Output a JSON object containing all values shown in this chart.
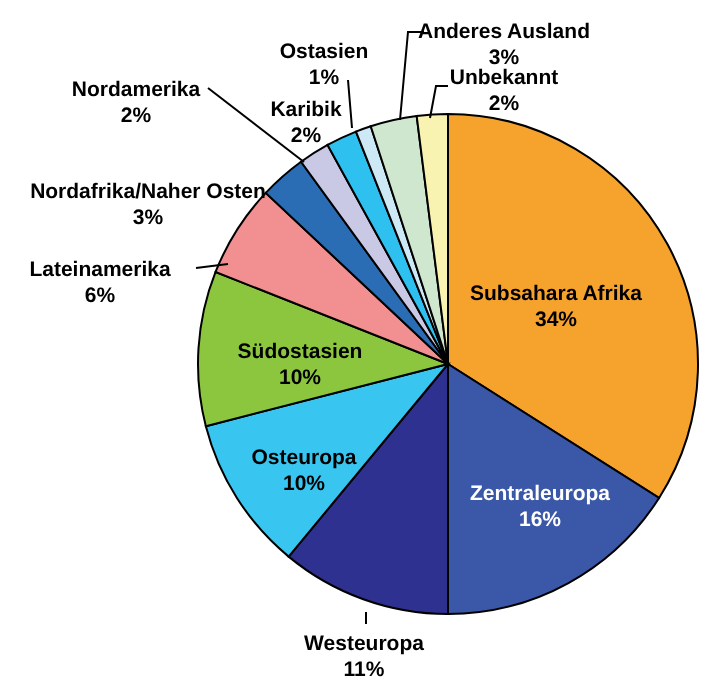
{
  "chart_data": {
    "type": "pie",
    "categories": [
      "Subsahara Afrika",
      "Zentraleuropa",
      "Westeuropa",
      "Osteuropa",
      "Südostasien",
      "Lateinamerika",
      "Nordafrika/Naher Osten",
      "Nordamerika",
      "Karibik",
      "Ostasien",
      "Anderes Ausland",
      "Unbekannt"
    ],
    "values": [
      34,
      16,
      11,
      10,
      10,
      6,
      3,
      2,
      2,
      1,
      3,
      2
    ],
    "value_labels": [
      "34%",
      "16%",
      "11%",
      "10%",
      "10%",
      "6%",
      "3%",
      "2%",
      "2%",
      "1%",
      "3%",
      "2%"
    ],
    "colors": [
      "#f5a32d",
      "#3a57a8",
      "#2e3190",
      "#38c6f0",
      "#8cc63f",
      "#f29091",
      "#2a6db5",
      "#c9c9e6",
      "#2ec0ef",
      "#cde9f5",
      "#cfe6cf",
      "#f8f3b0"
    ]
  }
}
